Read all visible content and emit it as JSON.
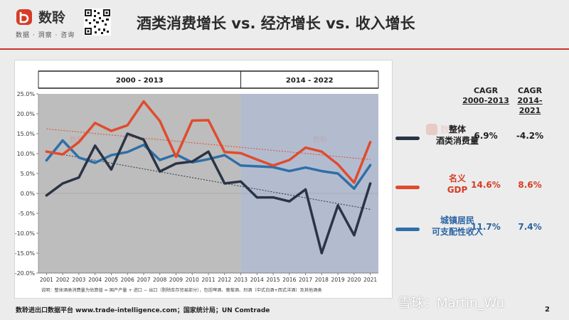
{
  "header": {
    "brand_name": "数聆",
    "brand_tagline": "数据 · 洞察 · 咨询",
    "page_title": "酒类消费增长 vs. 经济增长 vs. 收入增长",
    "brand_color": "#c7352b"
  },
  "chart_data": {
    "type": "line",
    "x": [
      2001,
      2002,
      2003,
      2004,
      2005,
      2006,
      2007,
      2008,
      2009,
      2010,
      2011,
      2012,
      2013,
      2014,
      2015,
      2016,
      2017,
      2018,
      2019,
      2020,
      2021
    ],
    "categories": [
      "2001",
      "2002",
      "2003",
      "2004",
      "2005",
      "2006",
      "2007",
      "2008",
      "2009",
      "2010",
      "2011",
      "2012",
      "2013",
      "2014",
      "2015",
      "2016",
      "2017",
      "2018",
      "2019",
      "2020",
      "2021"
    ],
    "y_ticks": [
      "25.0%",
      "20.0%",
      "15.0%",
      "10.0%",
      "5.0%",
      "0.0%",
      "-5.0%",
      "-10.0%",
      "-15.0%",
      "-20.0%"
    ],
    "ylim": [
      -20,
      25
    ],
    "periods": [
      {
        "label": "2000 - 2013",
        "color": "#bdbdbd"
      },
      {
        "label": "2014 - 2022",
        "color": "#b3bccf"
      }
    ],
    "series": [
      {
        "name": "整体酒类消费量",
        "color": "#2a3447",
        "values": [
          -0.5,
          2.5,
          4.0,
          12.0,
          6.0,
          15.0,
          13.5,
          5.5,
          7.5,
          8.0,
          10.5,
          2.5,
          3.0,
          -1.0,
          -1.0,
          -2.0,
          1.0,
          -15.0,
          -3.0,
          -10.5,
          2.5
        ]
      },
      {
        "name": "名义GDP",
        "color": "#e04b2e",
        "values": [
          10.5,
          9.8,
          12.9,
          17.7,
          15.7,
          17.1,
          23.1,
          18.2,
          9.2,
          18.3,
          18.4,
          10.4,
          10.1,
          8.5,
          7.0,
          8.4,
          11.5,
          10.5,
          7.3,
          2.7,
          12.9
        ]
      },
      {
        "name": "城镇居民可支配性收入",
        "color": "#2e6fa8",
        "values": [
          8.3,
          13.3,
          9.0,
          7.7,
          9.6,
          10.4,
          12.2,
          8.4,
          9.8,
          7.8,
          8.6,
          9.6,
          7.0,
          6.8,
          6.6,
          5.6,
          6.5,
          5.6,
          5.0,
          1.2,
          7.1
        ]
      }
    ],
    "trendlines": [
      {
        "series": "名义GDP",
        "from": [
          2001,
          16.2
        ],
        "to": [
          2021,
          8.5
        ]
      },
      {
        "series": "整体酒类消费量",
        "from": [
          2001,
          10.5
        ],
        "to": [
          2021,
          -4.0
        ]
      }
    ],
    "note": "说明：整体酒类消费量为估算值 = 国产产量 + 进口 − 出口（剔除库存贸易部分），包括啤酒、葡萄酒、烈酒（中式白酒+西式洋酒）及其他酒类"
  },
  "cagr": {
    "label": "CAGR",
    "period1": "2000-2013",
    "period2": "2014-2021",
    "rows": [
      {
        "label1": "整体",
        "label2": "酒类消费量",
        "p1": "6.9%",
        "p2": "-4.2%",
        "color": "#2a3447",
        "text_color": "#1f1f1f"
      },
      {
        "label1": "名义",
        "label2": "GDP",
        "p1": "14.6%",
        "p2": "8.6%",
        "color": "#e04b2e",
        "text_color": "#d63c26"
      },
      {
        "label1": "城镇居民",
        "label2": "可支配性收入",
        "p1": "11.7%",
        "p2": "7.4%",
        "color": "#2e6fa8",
        "text_color": "#2a63a3"
      }
    ]
  },
  "watermarks": {
    "brand": "数聆",
    "bottom": "雪球：Martin_Wu"
  },
  "footer": {
    "source": "数聆进出口数据平台 www.trade-intelligence.com；国家统计局；UN Comtrade",
    "page_number": "2"
  }
}
